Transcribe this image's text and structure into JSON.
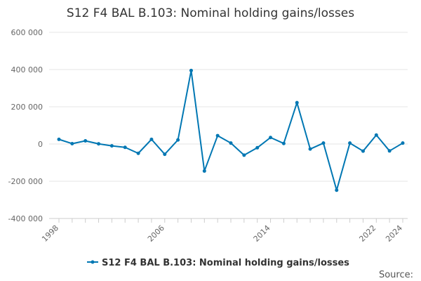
{
  "chart_data": {
    "type": "line",
    "title": "S12 F4 BAL B.103: Nominal holding gains/losses",
    "xlabel": "",
    "ylabel": "",
    "x": [
      1998,
      1999,
      2000,
      2001,
      2002,
      2003,
      2004,
      2005,
      2006,
      2007,
      2008,
      2009,
      2010,
      2011,
      2012,
      2013,
      2014,
      2015,
      2016,
      2017,
      2018,
      2019,
      2020,
      2021,
      2022,
      2023,
      2024
    ],
    "xticks": [
      "1998",
      "2006",
      "2014",
      "2022",
      "2024"
    ],
    "xtick_values": [
      1998,
      2006,
      2014,
      2022,
      2024
    ],
    "ylim": [
      -400000,
      600000
    ],
    "yticks": [
      -400000,
      -200000,
      0,
      200000,
      400000,
      600000
    ],
    "ytick_labels": [
      "-400 000",
      "-200 000",
      "0",
      "200 000",
      "400 000",
      "600 000"
    ],
    "grid": true,
    "legend_position": "bottom",
    "series": [
      {
        "name": "S12 F4 BAL B.103: Nominal holding gains/losses",
        "color": "#0077b3",
        "values": [
          25000,
          2000,
          17000,
          1000,
          -10000,
          -18000,
          -50000,
          25000,
          -55000,
          22000,
          395000,
          -145000,
          45000,
          5000,
          -60000,
          -20000,
          35000,
          3000,
          222000,
          -27000,
          5000,
          -248000,
          5000,
          -38000,
          48000,
          -37000,
          5000
        ]
      }
    ]
  },
  "source_label": "Source:"
}
